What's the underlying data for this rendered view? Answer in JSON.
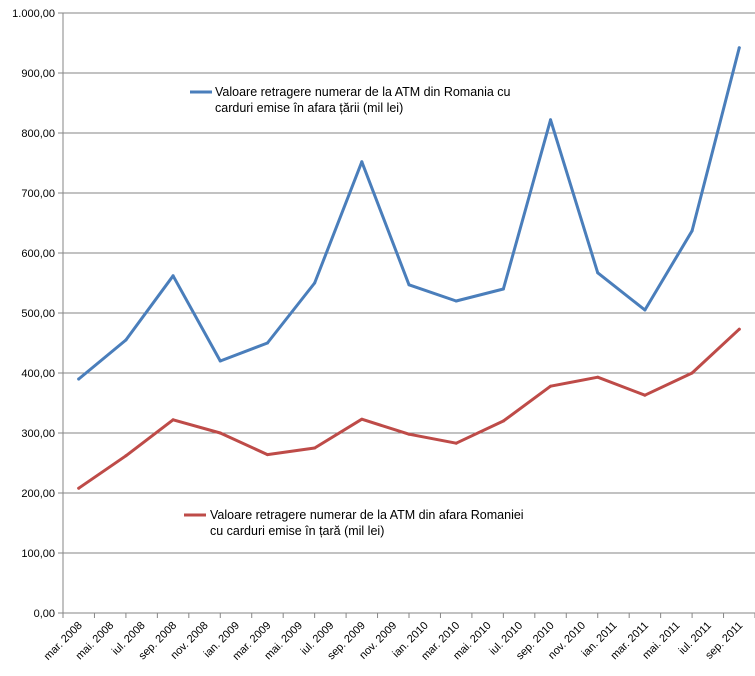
{
  "chart_data": {
    "type": "line",
    "categories": [
      "mar. 2008",
      "mai. 2008",
      "iul. 2008",
      "sep. 2008",
      "nov. 2008",
      "ian. 2009",
      "mar. 2009",
      "mai. 2009",
      "iul. 2009",
      "sep. 2009",
      "nov. 2009",
      "ian. 2010",
      "mar. 2010",
      "mai. 2010",
      "iul. 2010",
      "sep. 2010",
      "nov. 2010",
      "ian. 2011",
      "mar. 2011",
      "mai. 2011",
      "iul. 2011",
      "sep. 2011"
    ],
    "x_tick_labels": [
      "mar. 2008",
      "mai. 2008",
      "iul. 2008",
      "sep. 2008",
      "nov. 2008",
      "ian. 2009",
      "mar. 2009",
      "mai. 2009",
      "iul. 2009",
      "sep. 2009",
      "nov. 2009",
      "ian. 2010",
      "mar. 2010",
      "mai. 2010",
      "iul. 2010",
      "sep. 2010",
      "nov. 2010",
      "ian. 2011",
      "mar. 2011",
      "mai. 2011",
      "iul. 2011",
      "sep. 2011"
    ],
    "ylim": [
      0,
      1000
    ],
    "y_tick_labels": [
      "0,00",
      "100,00",
      "200,00",
      "300,00",
      "400,00",
      "500,00",
      "600,00",
      "700,00",
      "800,00",
      "900,00",
      "1.000,00"
    ],
    "grid": "horizontal",
    "series": [
      {
        "name": "Valoare retragere numerar de la ATM din Romania cu carduri emise în afara țării (mil lei)",
        "legend_lines": [
          "Valoare retragere numerar de la ATM din Romania cu",
          "carduri emise în afara țării (mil lei)"
        ],
        "color": "#4a7ebb",
        "x": [
          0,
          1.5,
          3,
          4.5,
          6,
          7.5,
          9,
          10.5,
          12,
          13.5,
          15,
          16.5,
          18,
          19.5,
          21
        ],
        "values": [
          390,
          455,
          562,
          420,
          450,
          550,
          752,
          547,
          520,
          540,
          822,
          567,
          505,
          637,
          942
        ]
      },
      {
        "name": "Valoare retragere numerar de la ATM din afara Romaniei cu carduri emise în țară (mil lei)",
        "legend_lines": [
          "Valoare retragere numerar de la ATM din afara Romaniei",
          "cu carduri emise în țară (mil lei)"
        ],
        "color": "#be4b48",
        "x": [
          0,
          1.5,
          3,
          4.5,
          6,
          7.5,
          9,
          10.5,
          12,
          13.5,
          15,
          16.5,
          18,
          19.5,
          21
        ],
        "values": [
          208,
          262,
          322,
          300,
          264,
          275,
          323,
          298,
          283,
          320,
          378,
          393,
          363,
          400,
          473
        ]
      }
    ]
  }
}
